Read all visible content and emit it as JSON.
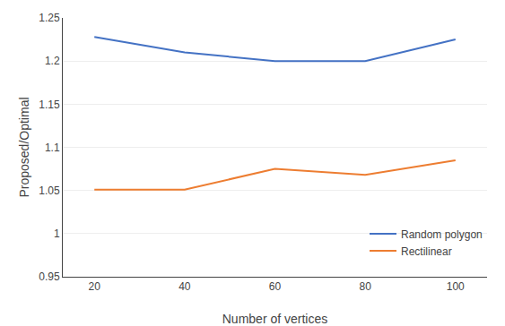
{
  "chart_data": {
    "type": "line",
    "x": [
      20,
      40,
      60,
      80,
      100
    ],
    "series": [
      {
        "name": "Random polygon",
        "color": "#4472C4",
        "values": [
          1.228,
          1.21,
          1.2,
          1.2,
          1.225
        ]
      },
      {
        "name": "Rectilinear",
        "color": "#ED7D31",
        "values": [
          1.051,
          1.051,
          1.075,
          1.068,
          1.085
        ]
      }
    ],
    "xlabel": "Number of vertices",
    "ylabel": "Proposed/Optimal",
    "xlim": [
      13,
      107
    ],
    "xticks": [
      20,
      40,
      60,
      80,
      100
    ],
    "ylim": [
      0.95,
      1.25
    ],
    "yticks": [
      0.95,
      1,
      1.05,
      1.1,
      1.15,
      1.2,
      1.25
    ],
    "grid": "y",
    "legend": "lower right"
  }
}
